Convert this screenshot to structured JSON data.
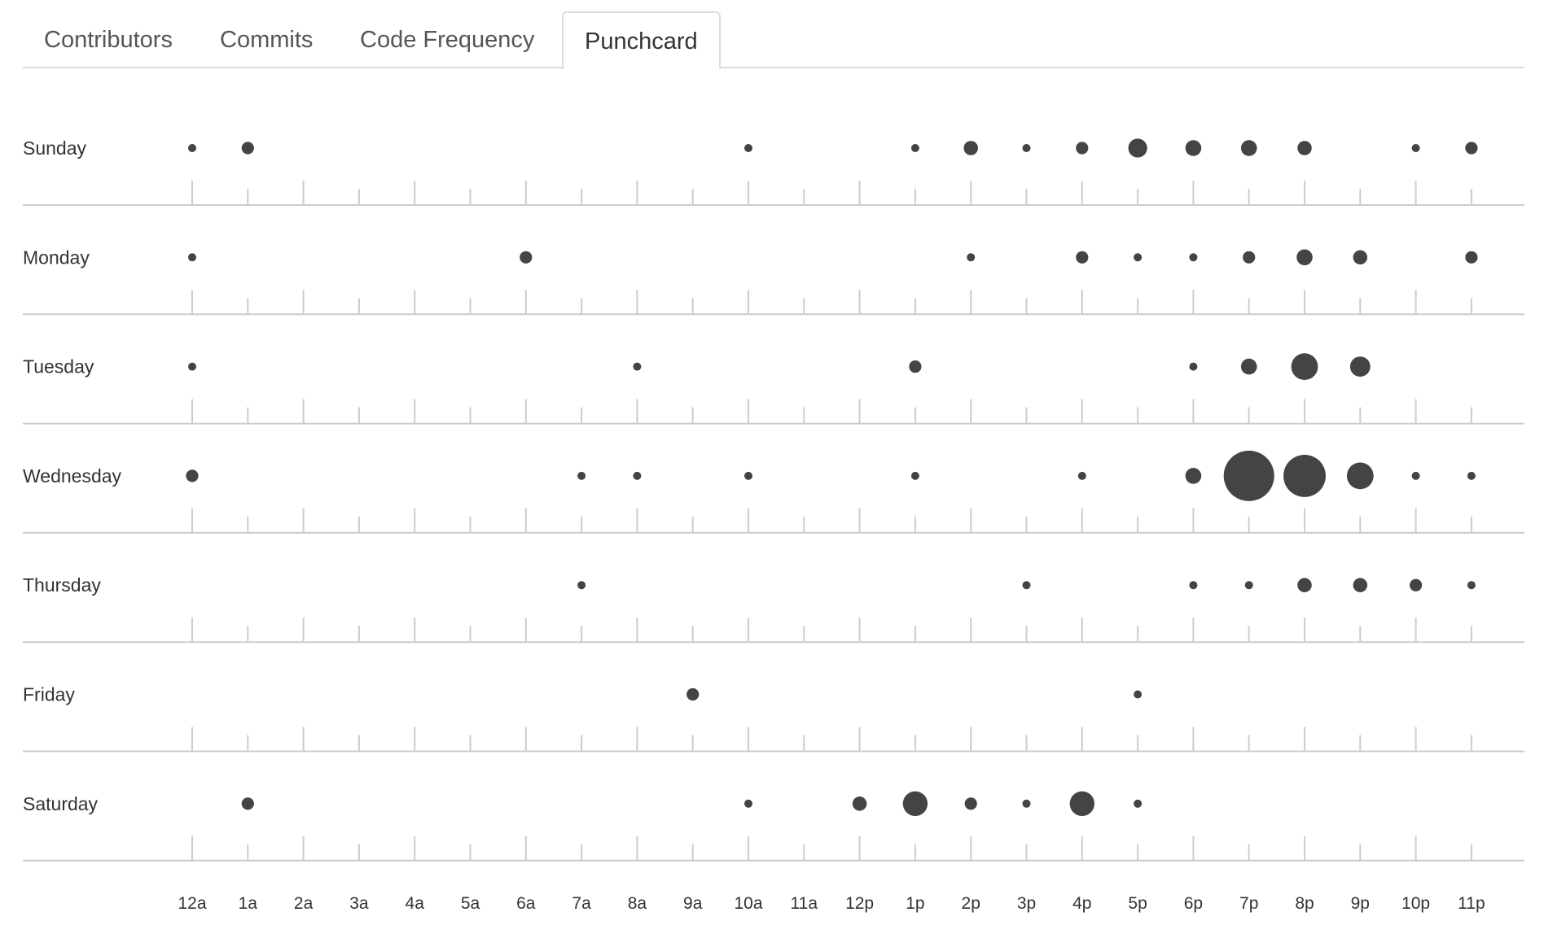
{
  "tabs": [
    {
      "label": "Contributors",
      "active": false
    },
    {
      "label": "Commits",
      "active": false
    },
    {
      "label": "Code Frequency",
      "active": false
    },
    {
      "label": "Punchcard",
      "active": true
    }
  ],
  "colors": {
    "dot": "#444444",
    "axis": "#cccccc",
    "tick": "#cccccc"
  },
  "chart_data": {
    "type": "scatter",
    "days": [
      "Sunday",
      "Monday",
      "Tuesday",
      "Wednesday",
      "Thursday",
      "Friday",
      "Saturday"
    ],
    "hours": [
      "12a",
      "1a",
      "2a",
      "3a",
      "4a",
      "5a",
      "6a",
      "7a",
      "8a",
      "9a",
      "10a",
      "11a",
      "12p",
      "1p",
      "2p",
      "3p",
      "4p",
      "5p",
      "6p",
      "7p",
      "8p",
      "9p",
      "10p",
      "11p"
    ],
    "values": [
      [
        1,
        3,
        0,
        0,
        0,
        0,
        0,
        0,
        0,
        0,
        1,
        0,
        0,
        1,
        4,
        1,
        3,
        7,
        5,
        5,
        4,
        0,
        1,
        3
      ],
      [
        1,
        0,
        0,
        0,
        0,
        0,
        3,
        0,
        0,
        0,
        0,
        0,
        0,
        0,
        1,
        0,
        3,
        1,
        1,
        3,
        5,
        4,
        0,
        3
      ],
      [
        1,
        0,
        0,
        0,
        0,
        0,
        0,
        0,
        1,
        0,
        0,
        0,
        0,
        3,
        0,
        0,
        0,
        0,
        1,
        5,
        14,
        8,
        0,
        0
      ],
      [
        3,
        0,
        0,
        0,
        0,
        0,
        0,
        1,
        1,
        0,
        1,
        0,
        0,
        1,
        0,
        0,
        1,
        0,
        5,
        50,
        35,
        14,
        1,
        1
      ],
      [
        0,
        0,
        0,
        0,
        0,
        0,
        0,
        1,
        0,
        0,
        0,
        0,
        0,
        0,
        0,
        1,
        0,
        0,
        1,
        1,
        4,
        4,
        3,
        1
      ],
      [
        0,
        0,
        0,
        0,
        0,
        0,
        0,
        0,
        0,
        3,
        0,
        0,
        0,
        0,
        0,
        0,
        0,
        1,
        0,
        0,
        0,
        0,
        0,
        0
      ],
      [
        0,
        3,
        0,
        0,
        0,
        0,
        0,
        0,
        0,
        0,
        1,
        0,
        4,
        12,
        3,
        1,
        12,
        1,
        0,
        0,
        0,
        0,
        0,
        0
      ]
    ]
  }
}
